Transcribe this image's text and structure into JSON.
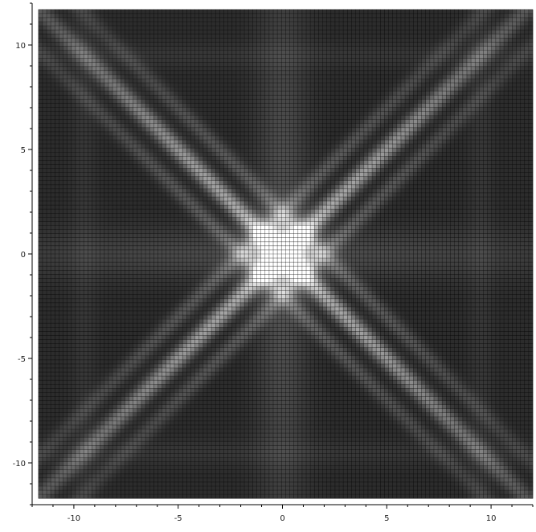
{
  "chart_data": {
    "type": "heatmap",
    "title": "",
    "xlabel": "",
    "ylabel": "",
    "xlim": [
      -12,
      12
    ],
    "ylim": [
      -12,
      12
    ],
    "x_ticks": [
      -10,
      -5,
      0,
      5,
      10
    ],
    "y_ticks": [
      -10,
      -5,
      0,
      5,
      10
    ],
    "x_tick_labels": [
      "-10",
      "-5",
      "0",
      "5",
      "10"
    ],
    "y_tick_labels": [
      "-10",
      "-5",
      "0",
      "5",
      "10"
    ],
    "grid": false,
    "grid_resolution": 120,
    "colors": {
      "background": "#ffffff",
      "field_low": "#141414",
      "field_high": "#ffffff",
      "mesh_lines": "#000000",
      "axes": "#000000"
    },
    "features": {
      "bright_center": [
        0,
        0
      ],
      "diagonal_bands": [
        "x=y",
        "x=-y"
      ],
      "vertical_band_x": 0,
      "horizontal_band_y": 0
    }
  }
}
